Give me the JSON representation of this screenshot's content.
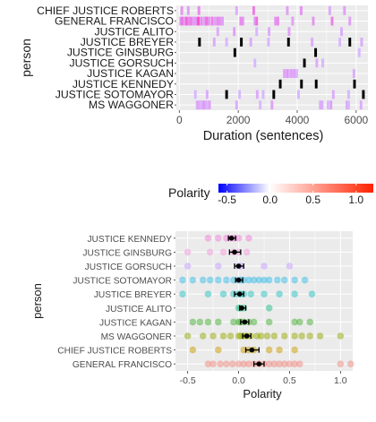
{
  "colors": {
    "panel_bg": "#ebebeb",
    "grid": "#ffffff",
    "neg": "#0000ff",
    "mid": "#ffffff",
    "pos": "#ff2200"
  },
  "chart_data": [
    {
      "type": "timeline",
      "ylabel": "person",
      "xlabel": "Duration (sentences)",
      "xlim": [
        -100,
        6400
      ],
      "xticks": [
        0,
        2000,
        4000,
        6000
      ],
      "grid": "on",
      "categories": [
        "CHIEF JUSTICE ROBERTS",
        "GENERAL FRANCISCO",
        "JUSTICE ALITO",
        "JUSTICE BREYER",
        "JUSTICE GINSBURG",
        "JUSTICE GORSUCH",
        "JUSTICE KAGAN",
        "JUSTICE KENNEDY",
        "JUSTICE SOTOMAYOR",
        "MS WAGGONER"
      ],
      "segments": [
        {
          "person": "CHIEF JUSTICE ROBERTS",
          "starts": [
            40,
            260,
            620,
            1900,
            2480,
            3620,
            4090,
            5060,
            5560
          ],
          "polarity": [
            0.3,
            0.2,
            0.4,
            0.1,
            0.5,
            0.2,
            0.3,
            0.1,
            0.2
          ]
        },
        {
          "person": "GENERAL FRANCISCO",
          "starts": [
            0,
            60,
            130,
            200,
            280,
            360,
            440,
            520,
            600,
            700,
            800,
            880,
            960,
            1070,
            1170,
            1260,
            1340,
            1420,
            2040,
            2110,
            2520,
            2580,
            3220,
            3300,
            3800,
            4500,
            5140,
            5740
          ],
          "polarity": [
            0.3,
            0.6,
            0.2,
            0.7,
            0.4,
            0.5,
            0.2,
            0.3,
            0.9,
            0.4,
            0.2,
            0.6,
            0.3,
            0.5,
            0.2,
            0.4,
            0.3,
            0.2,
            0.4,
            0.3,
            0.2,
            0.6,
            0.3,
            0.4,
            0.2,
            0.3,
            0.5,
            0.2
          ]
        },
        {
          "person": "JUSTICE ALITO",
          "starts": [
            1260,
            1820,
            2580,
            3000,
            3680,
            5460
          ],
          "polarity": [
            0.1,
            0.2,
            0.0,
            0.1,
            0.2,
            0.1
          ]
        },
        {
          "person": "JUSTICE BREYER",
          "starts": [
            640,
            1140,
            1560,
            2060,
            2380,
            2980,
            3660,
            4460,
            5400,
            5740,
            6140
          ],
          "polarity": [
            -0.2,
            0.1,
            0.0,
            -0.1,
            0.1,
            0.0,
            -0.3,
            0.1,
            0.0,
            -0.1,
            0.1
          ]
        },
        {
          "person": "JUSTICE GINSBURG",
          "starts": [
            1840,
            4580,
            6060
          ],
          "polarity": [
            -0.1,
            -0.5,
            0.0
          ]
        },
        {
          "person": "JUSTICE GORSUCH",
          "starts": [
            2520,
            4200,
            4620,
            4820
          ],
          "polarity": [
            0.0,
            -0.1,
            0.1,
            0.0
          ]
        },
        {
          "person": "JUSTICE KAGAN",
          "starts": [
            3520,
            3580,
            3640,
            3700,
            3760,
            3820,
            3880,
            3940,
            5880
          ],
          "polarity": [
            0.2,
            0.1,
            0.3,
            0.0,
            0.2,
            0.1,
            0.2,
            0.0,
            0.1
          ]
        },
        {
          "person": "JUSTICE KENNEDY",
          "starts": [
            3380,
            4100,
            4600,
            5900
          ],
          "polarity": [
            -0.2,
            -0.1,
            -0.3,
            -0.1
          ]
        },
        {
          "person": "JUSTICE SOTOMAYOR",
          "starts": [
            500,
            900,
            1560,
            2000,
            2600,
            2800,
            3160,
            4000,
            5180,
            5700,
            6200
          ],
          "polarity": [
            0.0,
            0.1,
            -0.1,
            0.0,
            0.1,
            0.0,
            -0.2,
            0.0,
            0.1,
            0.0,
            -0.1
          ]
        },
        {
          "person": "MS WAGGONER",
          "starts": [
            560,
            620,
            680,
            740,
            800,
            860,
            920,
            980,
            1900,
            2700,
            3100,
            4740,
            4800,
            5000,
            5100,
            5640,
            5700,
            6120
          ],
          "polarity": [
            0.1,
            0.2,
            0.0,
            0.1,
            0.3,
            0.1,
            0.0,
            0.2,
            0.1,
            0.0,
            0.2,
            0.1,
            0.1,
            0.0,
            0.2,
            0.1,
            0.0,
            0.1
          ]
        }
      ]
    },
    {
      "type": "legend",
      "title": "Polarity",
      "range": [
        -0.6,
        1.2
      ],
      "ticks": [
        "-0.5",
        "0.0",
        "0.5",
        "1.0"
      ],
      "tick_values": [
        -0.5,
        0.0,
        0.5,
        1.0
      ]
    },
    {
      "type": "scatter",
      "ylabel": "person",
      "xlabel": "Polarity",
      "xlim": [
        -0.62,
        1.12
      ],
      "xticks": [
        -0.5,
        0.0,
        0.5,
        1.0
      ],
      "xtick_labels": [
        "-0.5",
        "0.0",
        "0.5",
        "1.0"
      ],
      "grid": "on",
      "categories": [
        "JUSTICE KENNEDY",
        "JUSTICE GINSBURG",
        "JUSTICE GORSUCH",
        "JUSTICE SOTOMAYOR",
        "JUSTICE BREYER",
        "JUSTICE ALITO",
        "JUSTICE KAGAN",
        "MS WAGGONER",
        "CHIEF JUSTICE ROBERTS",
        "GENERAL FRANCISCO"
      ],
      "series": [
        {
          "person": "JUSTICE KENNEDY",
          "color": "#f07ed8",
          "points": [
            -0.3,
            -0.2,
            -0.12,
            -0.08,
            -0.05,
            0.0,
            0.1
          ],
          "mean": -0.07,
          "ci": [
            -0.1,
            -0.03
          ]
        },
        {
          "person": "JUSTICE GINSBURG",
          "color": "#f19ad9",
          "points": [
            -0.5,
            -0.28,
            -0.15,
            -0.05,
            0.0,
            0.08
          ],
          "mean": -0.04,
          "ci": [
            -0.09,
            0.02
          ]
        },
        {
          "person": "JUSTICE GORSUCH",
          "color": "#c79bff",
          "points": [
            -0.5,
            -0.2,
            0.0,
            0.02,
            0.25,
            0.5
          ],
          "mean": 0.0,
          "ci": [
            -0.04,
            0.05
          ]
        },
        {
          "person": "JUSTICE SOTOMAYOR",
          "color": "#33b9e6",
          "points": [
            -0.55,
            -0.45,
            -0.35,
            -0.28,
            -0.2,
            -0.12,
            -0.05,
            0.0,
            0.02,
            0.05,
            0.1,
            0.15,
            0.2,
            0.25,
            0.3,
            0.38,
            0.45,
            0.55,
            0.65
          ],
          "mean": 0.0,
          "ci": [
            -0.03,
            0.04
          ]
        },
        {
          "person": "JUSTICE BREYER",
          "color": "#26c2bf",
          "points": [
            -0.55,
            -0.3,
            -0.15,
            -0.05,
            0.0,
            0.02,
            0.05,
            0.12,
            0.25,
            0.4,
            0.55,
            0.72
          ],
          "mean": 0.01,
          "ci": [
            -0.04,
            0.05
          ]
        },
        {
          "person": "JUSTICE ALITO",
          "color": "#1fba8a",
          "points": [
            0.0,
            0.02,
            0.05,
            0.3
          ],
          "mean": 0.03,
          "ci": [
            0.01,
            0.07
          ]
        },
        {
          "person": "JUSTICE KAGAN",
          "color": "#49b036",
          "points": [
            -0.45,
            -0.38,
            -0.3,
            -0.2,
            -0.05,
            0.0,
            0.02,
            0.05,
            0.1,
            0.15,
            0.3,
            0.55,
            0.6,
            0.7
          ],
          "mean": 0.06,
          "ci": [
            0.02,
            0.1
          ]
        },
        {
          "person": "MS WAGGONER",
          "color": "#93a800",
          "points": [
            -0.5,
            -0.35,
            -0.25,
            -0.15,
            -0.08,
            0.0,
            0.02,
            0.05,
            0.08,
            0.12,
            0.18,
            0.22,
            0.28,
            0.35,
            0.45,
            0.55,
            0.62,
            0.7,
            0.8,
            1.0
          ],
          "mean": 0.08,
          "ci": [
            0.04,
            0.12
          ]
        },
        {
          "person": "CHIEF JUSTICE ROBERTS",
          "color": "#c99a00",
          "points": [
            -0.45,
            -0.2,
            0.05,
            0.1,
            0.15,
            0.3,
            0.4,
            0.55
          ],
          "mean": 0.13,
          "ci": [
            0.07,
            0.2
          ]
        },
        {
          "person": "GENERAL FRANCISCO",
          "color": "#f08a80",
          "points": [
            -0.3,
            -0.25,
            -0.18,
            -0.12,
            -0.06,
            0.0,
            0.05,
            0.1,
            0.15,
            0.2,
            0.25,
            0.3,
            0.35,
            0.4,
            0.45,
            0.5,
            0.55,
            0.6,
            1.0,
            1.1
          ],
          "mean": 0.2,
          "ci": [
            0.15,
            0.25
          ]
        }
      ]
    }
  ]
}
